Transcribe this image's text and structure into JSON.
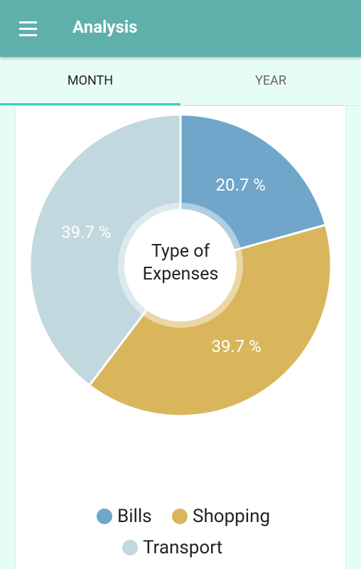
{
  "app_bar": {
    "title": "Analysis"
  },
  "tabs": [
    "MONTH",
    "YEAR"
  ],
  "chart_data": {
    "type": "pie",
    "center_label": "Type of Expenses",
    "categories": [
      "Bills",
      "Shopping",
      "Transport"
    ],
    "values": [
      20.7,
      39.7,
      39.7
    ],
    "value_labels": [
      "20.7 %",
      "39.7 %",
      "39.7 %"
    ],
    "colors": [
      "#70a6c9",
      "#d9b65c",
      "#c1d8de"
    ]
  }
}
